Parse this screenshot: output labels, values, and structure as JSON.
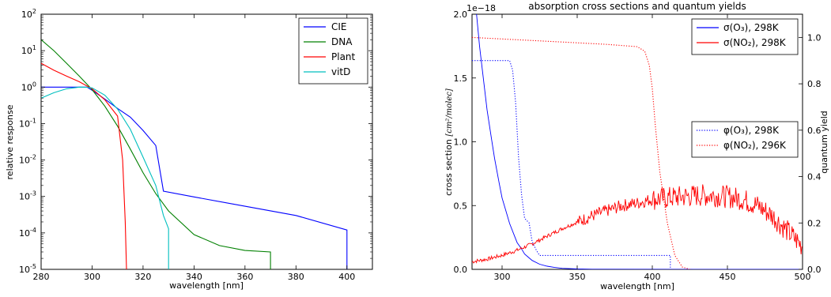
{
  "chart_data": [
    {
      "type": "line",
      "title": "",
      "xlabel": "wavelength [nm]",
      "ylabel": "relative response",
      "xlim": [
        280,
        410
      ],
      "ylim": [
        1e-05,
        100
      ],
      "yscale": "log",
      "xticks": [
        "280",
        "300",
        "320",
        "340",
        "360",
        "380",
        "400"
      ],
      "yticks": [
        {
          "base": "10",
          "exp": "-5"
        },
        {
          "base": "10",
          "exp": "-4"
        },
        {
          "base": "10",
          "exp": "-3"
        },
        {
          "base": "10",
          "exp": "-2"
        },
        {
          "base": "10",
          "exp": "-1"
        },
        {
          "base": "10",
          "exp": "0"
        },
        {
          "base": "10",
          "exp": "1"
        },
        {
          "base": "10",
          "exp": "2"
        }
      ],
      "legend_position": "top-right",
      "series": [
        {
          "name": "CIE",
          "color": "#0000ff",
          "x": [
            280,
            298,
            300,
            305,
            310,
            315,
            320,
            325,
            328,
            340,
            360,
            380,
            400,
            400
          ],
          "y": [
            1,
            1,
            0.82,
            0.47,
            0.26,
            0.15,
            0.065,
            0.025,
            0.0014,
            0.00097,
            0.00054,
            0.0003,
            0.00012,
            1e-05
          ]
        },
        {
          "name": "DNA",
          "color": "#008000",
          "x": [
            280,
            285,
            290,
            295,
            300,
            305,
            310,
            315,
            320,
            325,
            330,
            340,
            350,
            360,
            370,
            370
          ],
          "y": [
            20,
            10,
            4.5,
            2,
            0.85,
            0.3,
            0.085,
            0.02,
            0.0045,
            0.0012,
            0.0004,
            9e-05,
            4.5e-05,
            3.3e-05,
            3e-05,
            1e-05
          ]
        },
        {
          "name": "Plant",
          "color": "#ff0000",
          "x": [
            280,
            285,
            290,
            295,
            300,
            305,
            310,
            312,
            313,
            313.5
          ],
          "y": [
            4.5,
            2.9,
            2.0,
            1.4,
            0.9,
            0.45,
            0.16,
            0.01,
            0.0002,
            1e-05
          ]
        },
        {
          "name": "vitD",
          "color": "#00bfbf",
          "x": [
            280,
            285,
            290,
            295,
            298,
            300,
            305,
            310,
            315,
            320,
            325,
            328,
            330,
            330
          ],
          "y": [
            0.5,
            0.7,
            0.9,
            1.0,
            0.99,
            0.95,
            0.6,
            0.25,
            0.07,
            0.012,
            0.002,
            0.0003,
            0.00013,
            1e-05
          ]
        }
      ]
    },
    {
      "type": "line",
      "title": "absorption cross sections and quantum yields",
      "xlabel": "wavelength [nm]",
      "ylabel": "cross section",
      "ylabel_unit": "[cm²/molec]",
      "y2label": "quantum yield",
      "xlim": [
        280,
        500
      ],
      "ylim": [
        0,
        2.0
      ],
      "y_multiplier": "1e−18",
      "y2lim": [
        0,
        1.1
      ],
      "xticks": [
        "300",
        "350",
        "400",
        "450",
        "500"
      ],
      "yticks": [
        "0.0",
        "0.5",
        "1.0",
        "1.5",
        "2.0"
      ],
      "y2ticks": [
        "0.0",
        "0.2",
        "0.4",
        "0.6",
        "0.8",
        "1.0"
      ],
      "legends": [
        {
          "position": "top-right",
          "entries": [
            {
              "name": "σ(O₃), 298K",
              "color": "#0000ff",
              "style": "solid"
            },
            {
              "name": "σ(NO₂), 298K",
              "color": "#ff0000",
              "style": "solid"
            }
          ]
        },
        {
          "position": "center-right",
          "entries": [
            {
              "name": "φ(O₃), 298K",
              "color": "#0000ff",
              "style": "dotted"
            },
            {
              "name": "φ(NO₂), 296K",
              "color": "#ff0000",
              "style": "dotted"
            }
          ]
        }
      ],
      "series": [
        {
          "name": "σ(O₃), 298K",
          "color": "#0000ff",
          "style": "solid",
          "axis": "left",
          "x": [
            283,
            285,
            288,
            290,
            293,
            295,
            298,
            300,
            303,
            305,
            308,
            310,
            313,
            315,
            318,
            320,
            325,
            330,
            335,
            340,
            350,
            360,
            500
          ],
          "y": [
            2.0,
            1.75,
            1.45,
            1.25,
            1.02,
            0.87,
            0.68,
            0.56,
            0.44,
            0.36,
            0.27,
            0.21,
            0.16,
            0.12,
            0.09,
            0.07,
            0.04,
            0.025,
            0.015,
            0.008,
            0.003,
            0.001,
            0.0
          ]
        },
        {
          "name": "σ(NO₂), 298K",
          "color": "#ff0000",
          "style": "solid",
          "axis": "left",
          "x": [
            280,
            290,
            300,
            310,
            320,
            330,
            340,
            350,
            360,
            370,
            380,
            390,
            400,
            410,
            420,
            430,
            440,
            450,
            460,
            470,
            480,
            490,
            500
          ],
          "y": [
            0.06,
            0.08,
            0.11,
            0.15,
            0.2,
            0.26,
            0.32,
            0.37,
            0.42,
            0.46,
            0.5,
            0.52,
            0.55,
            0.56,
            0.57,
            0.58,
            0.58,
            0.57,
            0.55,
            0.5,
            0.42,
            0.3,
            0.18
          ]
        },
        {
          "name": "φ(O₃), 298K",
          "color": "#0000ff",
          "style": "dotted",
          "axis": "right",
          "x": [
            280,
            305,
            307,
            309,
            311,
            313,
            315,
            318,
            320,
            323,
            325,
            412,
            412
          ],
          "y": [
            0.9,
            0.9,
            0.86,
            0.72,
            0.48,
            0.32,
            0.22,
            0.2,
            0.12,
            0.08,
            0.06,
            0.06,
            0.0
          ]
        },
        {
          "name": "φ(NO₂), 296K",
          "color": "#ff0000",
          "style": "dotted",
          "axis": "right",
          "x": [
            280,
            310,
            340,
            370,
            390,
            395,
            398,
            400,
            402,
            405,
            410,
            415,
            420,
            425
          ],
          "y": [
            1.0,
            0.99,
            0.98,
            0.97,
            0.96,
            0.94,
            0.88,
            0.78,
            0.62,
            0.42,
            0.2,
            0.06,
            0.01,
            0.0
          ]
        }
      ]
    }
  ]
}
